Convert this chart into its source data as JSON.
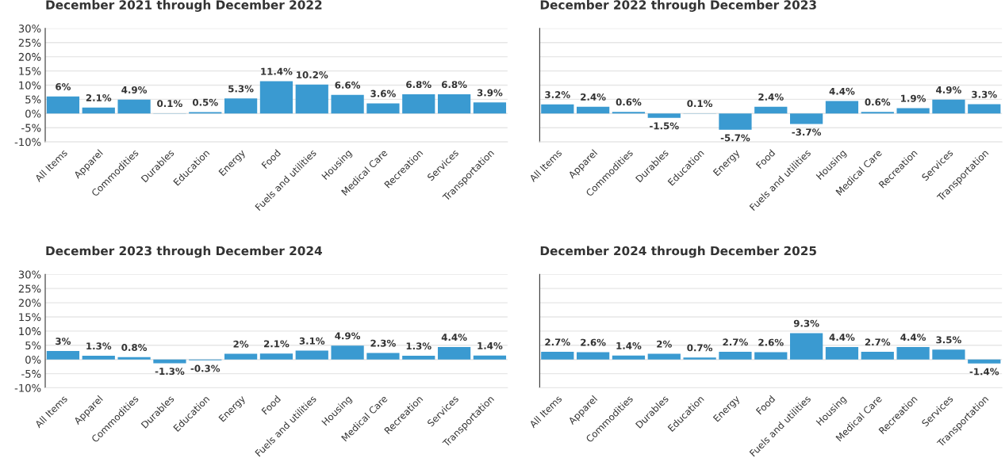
{
  "chart_data": [
    {
      "type": "bar",
      "title": "December 2021 through December 2022",
      "categories": [
        "All Items",
        "Apparel",
        "Commodities",
        "Durables",
        "Education",
        "Energy",
        "Food",
        "Fuels and utilities",
        "Housing",
        "Medical Care",
        "Recreation",
        "Services",
        "Transportation"
      ],
      "values": [
        6,
        2.1,
        4.9,
        0.1,
        0.5,
        5.3,
        11.4,
        10.2,
        6.6,
        3.6,
        6.8,
        6.8,
        3.9
      ],
      "value_labels": [
        "6%",
        "2.1%",
        "4.9%",
        "0.1%",
        "0.5%",
        "5.3%",
        "11.4%",
        "10.2%",
        "6.6%",
        "3.6%",
        "6.8%",
        "6.8%",
        "3.9%"
      ],
      "color": "#3a9ad1",
      "ylim": [
        -10,
        30
      ],
      "yticks": [
        {
          "value": -10,
          "label": "-10%"
        },
        {
          "value": -5,
          "label": "-5%"
        },
        {
          "value": 0,
          "label": "0%"
        },
        {
          "value": 5,
          "label": "5%"
        },
        {
          "value": 10,
          "label": "10%"
        },
        {
          "value": 15,
          "label": "15%"
        },
        {
          "value": 20,
          "label": "20%"
        },
        {
          "value": 25,
          "label": "25%"
        },
        {
          "value": 30,
          "label": "30%"
        }
      ],
      "grid": "y"
    },
    {
      "type": "bar",
      "title": "December 2022 through December 2023",
      "categories": [
        "All Items",
        "Apparel",
        "Commodities",
        "Durables",
        "Education",
        "Energy",
        "Food",
        "Fuels and utilities",
        "Housing",
        "Medical Care",
        "Recreation",
        "Services",
        "Transportation"
      ],
      "values": [
        3.2,
        2.4,
        0.6,
        -1.5,
        0.1,
        -5.7,
        2.4,
        -3.7,
        4.4,
        0.6,
        1.9,
        4.9,
        3.3
      ],
      "value_labels": [
        "3.2%",
        "2.4%",
        "0.6%",
        "-1.5%",
        "0.1%",
        "-5.7%",
        "2.4%",
        "-3.7%",
        "4.4%",
        "0.6%",
        "1.9%",
        "4.9%",
        "3.3%"
      ],
      "color": "#3a9ad1",
      "ylim": [
        -10,
        30
      ],
      "yticks": [
        {
          "value": -10,
          "label": null
        },
        {
          "value": -5,
          "label": null
        },
        {
          "value": 0,
          "label": null
        },
        {
          "value": 5,
          "label": null
        },
        {
          "value": 10,
          "label": null
        },
        {
          "value": 15,
          "label": null
        },
        {
          "value": 20,
          "label": null
        },
        {
          "value": 25,
          "label": null
        },
        {
          "value": 30,
          "label": null
        }
      ],
      "grid": "y",
      "tick_labels": "x"
    },
    {
      "type": "bar",
      "title": "December 2023 through December 2024",
      "categories": [
        "All Items",
        "Apparel",
        "Commodities",
        "Durables",
        "Education",
        "Energy",
        "Food",
        "Fuels and utilities",
        "Housing",
        "Medical Care",
        "Recreation",
        "Services",
        "Transportation"
      ],
      "values": [
        3,
        1.3,
        0.8,
        -1.3,
        -0.3,
        2,
        2.1,
        3.1,
        4.9,
        2.3,
        1.3,
        4.4,
        1.4
      ],
      "value_labels": [
        "3%",
        "1.3%",
        "0.8%",
        "-1.3%",
        "-0.3%",
        "2%",
        "2.1%",
        "3.1%",
        "4.9%",
        "2.3%",
        "1.3%",
        "4.4%",
        "1.4%"
      ],
      "color": "#3a9ad1",
      "ylim": [
        -10,
        30
      ],
      "yticks": [
        {
          "value": -10,
          "label": "-10%"
        },
        {
          "value": -5,
          "label": "-5%"
        },
        {
          "value": 0,
          "label": "0%"
        },
        {
          "value": 5,
          "label": "5%"
        },
        {
          "value": 10,
          "label": "10%"
        },
        {
          "value": 15,
          "label": "15%"
        },
        {
          "value": 20,
          "label": "20%"
        },
        {
          "value": 25,
          "label": "25%"
        },
        {
          "value": 30,
          "label": "30%"
        }
      ],
      "grid": "y"
    },
    {
      "type": "bar",
      "title": "December 2024 through December 2025",
      "categories": [
        "All Items",
        "Apparel",
        "Commodities",
        "Durables",
        "Education",
        "Energy",
        "Food",
        "Fuels and utilities",
        "Housing",
        "Medical Care",
        "Recreation",
        "Services",
        "Transportation"
      ],
      "values": [
        2.7,
        2.6,
        1.4,
        2,
        0.7,
        2.7,
        2.6,
        9.3,
        4.4,
        2.7,
        4.4,
        3.5,
        -1.4
      ],
      "value_labels": [
        "2.7%",
        "2.6%",
        "1.4%",
        "2%",
        "0.7%",
        "2.7%",
        "2.6%",
        "9.3%",
        "4.4%",
        "2.7%",
        "4.4%",
        "3.5%",
        "-1.4%"
      ],
      "color": "#3a9ad1",
      "ylim": [
        -10,
        30
      ],
      "yticks": [
        {
          "value": -10,
          "label": null
        },
        {
          "value": -5,
          "label": null
        },
        {
          "value": 0,
          "label": null
        },
        {
          "value": 5,
          "label": null
        },
        {
          "value": 10,
          "label": null
        },
        {
          "value": 15,
          "label": null
        },
        {
          "value": 20,
          "label": null
        },
        {
          "value": 25,
          "label": null
        },
        {
          "value": 30,
          "label": null
        }
      ],
      "grid": "y",
      "tick_labels": "x"
    }
  ]
}
